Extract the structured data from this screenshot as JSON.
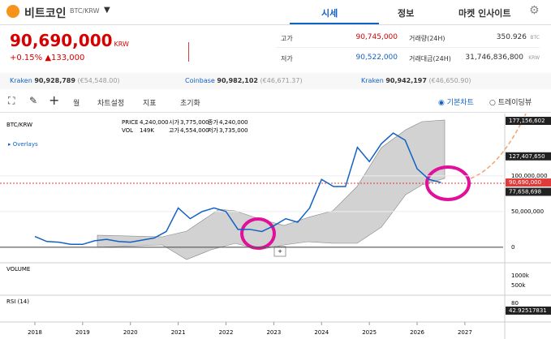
{
  "header": {
    "coin": "비트코인",
    "pair": "BTC/KRW",
    "tabs": [
      "시세",
      "정보",
      "마켓 인사이트"
    ]
  },
  "price": {
    "value": "90,690,000",
    "unit": "KRW",
    "change_rate": "+0.15%",
    "change": "▲133,000"
  },
  "stats": {
    "high_label": "고가",
    "high": "90,745,000",
    "low_label": "저가",
    "low": "90,522,000",
    "volume_label": "거래량(24H)",
    "volume": "350.926",
    "volume_unit": "BTC",
    "amount_label": "거래대금(24H)",
    "amount": "31,746,836,800",
    "amount_unit": "KRW"
  },
  "exchanges": [
    {
      "name": "Kraken",
      "price": "90,928,789",
      "eur": "(€54,548.00)"
    },
    {
      "name": "Coinbase",
      "price": "90,982,102",
      "eur": "(€46,671.37)"
    },
    {
      "name": "Kraken",
      "price": "90,942,197",
      "eur": "(€46,650.90)"
    }
  ],
  "toolbar": {
    "period": "월",
    "settings": "차트설정",
    "indicators": "지표",
    "reset": "초기화",
    "basic": "기본차트",
    "tradingview": "트레이딩뷰"
  },
  "chart_info": {
    "pair": "BTC/KRW",
    "overlays": "Overlays",
    "price_label": "PRICE",
    "price": "4,240,000",
    "vol_label": "VOL",
    "vol": "149K",
    "open_label": "시가",
    "open": "3,775,000",
    "high_label": "고가",
    "high": "4,554,000",
    "close_label": "종가",
    "close": "4,240,000",
    "low_label": "저가",
    "low": "3,735,000"
  },
  "chart_data": {
    "type": "line",
    "color": "#1261c4",
    "x": [
      2018,
      2018.25,
      2018.5,
      2018.75,
      2019,
      2019.25,
      2019.5,
      2019.75,
      2020,
      2020.25,
      2020.5,
      2020.75,
      2021,
      2021.25,
      2021.5,
      2021.75,
      2022,
      2022.25,
      2022.5,
      2022.75,
      2023,
      2023.25,
      2023.5,
      2023.75,
      2024,
      2024.25,
      2024.5,
      2024.75,
      2025,
      2025.25,
      2025.5,
      2025.75,
      2026,
      2026.25,
      2026.5
    ],
    "values": [
      15000000,
      8000000,
      7000000,
      4000000,
      4000000,
      9000000,
      11000000,
      8000000,
      7000000,
      10000000,
      13000000,
      22000000,
      55000000,
      40000000,
      50000000,
      55000000,
      50000000,
      25000000,
      25000000,
      22000000,
      30000000,
      40000000,
      35000000,
      55000000,
      95000000,
      85000000,
      85000000,
      140000000,
      120000000,
      145000000,
      160000000,
      150000000,
      110000000,
      95000000,
      90690000
    ],
    "xlim": [
      2017.27,
      2027.8
    ],
    "xticks": [
      2018,
      2019,
      2020,
      2021,
      2022,
      2023,
      2024,
      2025,
      2026,
      2027
    ],
    "ylim": [
      -15000000,
      184000000
    ],
    "yticks": [
      0,
      {
        "value": 50000000,
        "label": "50,000,000"
      },
      {
        "value": 100000000,
        "label": "100,000,000"
      }
    ],
    "price_tags": [
      {
        "value": 177156602,
        "label": "177,156,602",
        "color": "#222"
      },
      {
        "value": 127407650,
        "label": "127,407,650",
        "color": "#222"
      },
      {
        "value": 90690000,
        "label": "90,690,000",
        "color": "#e03b3b"
      },
      {
        "value": 77658698,
        "label": "77,658,698",
        "color": "#222"
      }
    ],
    "volume_title": "VOLUME",
    "volume_ticks": [
      "1000k",
      "500k"
    ],
    "rsi_title": "RSI (14)",
    "rsi_ticks": [
      "80"
    ],
    "rsi_value": "42.92517831"
  }
}
